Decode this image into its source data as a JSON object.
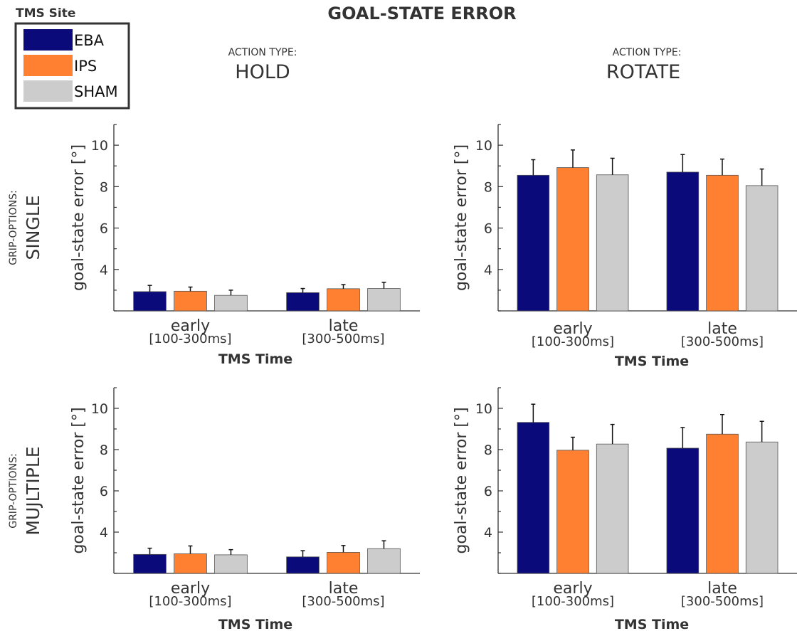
{
  "title": "GOAL-STATE ERROR",
  "legend": {
    "title": "TMS Site",
    "placement": "top-left",
    "entries": [
      {
        "label": "EBA",
        "color": "#0a0a7a"
      },
      {
        "label": "IPS",
        "color": "#ff8030"
      },
      {
        "label": "SHAM",
        "color": "#cccccc"
      }
    ]
  },
  "columns": [
    {
      "caption": "ACTION TYPE:",
      "label": "HOLD"
    },
    {
      "caption": "ACTION TYPE:",
      "label": "ROTATE"
    }
  ],
  "rows": [
    {
      "caption": "GRIP-OPTIONS:",
      "label": "SINGLE"
    },
    {
      "caption": "GRIP-OPTIONS:",
      "label": "MUJLTIPLE"
    }
  ],
  "chart_data": [
    {
      "type": "bar",
      "panel": "SINGLE / HOLD",
      "categories": [
        "early",
        "late"
      ],
      "category_sublabels": [
        "[100-300ms]",
        "[300-500ms]"
      ],
      "xlabel": "TMS Time",
      "ylabel": "goal-state error [°]",
      "ylim": [
        2,
        11
      ],
      "yticks": [
        4,
        6,
        8,
        10
      ],
      "series": [
        {
          "name": "EBA",
          "values": [
            2.93,
            2.88
          ],
          "errors": [
            0.3,
            0.2
          ]
        },
        {
          "name": "IPS",
          "values": [
            2.95,
            3.07
          ],
          "errors": [
            0.2,
            0.2
          ]
        },
        {
          "name": "SHAM",
          "values": [
            2.75,
            3.08
          ],
          "errors": [
            0.25,
            0.3
          ]
        }
      ]
    },
    {
      "type": "bar",
      "panel": "SINGLE / ROTATE",
      "categories": [
        "early",
        "late"
      ],
      "category_sublabels": [
        "[100-300ms]",
        "[300-500ms]"
      ],
      "xlabel": "TMS Time",
      "ylabel": "goal-state error [°]",
      "ylim": [
        2,
        11
      ],
      "yticks": [
        4,
        6,
        8,
        10
      ],
      "series": [
        {
          "name": "EBA",
          "values": [
            8.55,
            8.7
          ],
          "errors": [
            0.75,
            0.85
          ]
        },
        {
          "name": "IPS",
          "values": [
            8.92,
            8.55
          ],
          "errors": [
            0.85,
            0.78
          ]
        },
        {
          "name": "SHAM",
          "values": [
            8.57,
            8.05
          ],
          "errors": [
            0.8,
            0.8
          ]
        }
      ]
    },
    {
      "type": "bar",
      "panel": "MUJLTIPLE / HOLD",
      "categories": [
        "early",
        "late"
      ],
      "category_sublabels": [
        "[100-300ms]",
        "[300-500ms]"
      ],
      "xlabel": "TMS Time",
      "ylabel": "goal-state error [°]",
      "ylim": [
        2,
        11
      ],
      "yticks": [
        4,
        6,
        8,
        10
      ],
      "series": [
        {
          "name": "EBA",
          "values": [
            2.92,
            2.8
          ],
          "errors": [
            0.3,
            0.3
          ]
        },
        {
          "name": "IPS",
          "values": [
            2.95,
            3.02
          ],
          "errors": [
            0.38,
            0.33
          ]
        },
        {
          "name": "SHAM",
          "values": [
            2.9,
            3.2
          ],
          "errors": [
            0.25,
            0.38
          ]
        }
      ]
    },
    {
      "type": "bar",
      "panel": "MUJLTIPLE / ROTATE",
      "categories": [
        "early",
        "late"
      ],
      "category_sublabels": [
        "[100-300ms]",
        "[300-500ms]"
      ],
      "xlabel": "TMS Time",
      "ylabel": "goal-state error [°]",
      "ylim": [
        2,
        11
      ],
      "yticks": [
        4,
        6,
        8,
        10
      ],
      "series": [
        {
          "name": "EBA",
          "values": [
            9.32,
            8.07
          ],
          "errors": [
            0.88,
            1.0
          ]
        },
        {
          "name": "IPS",
          "values": [
            7.97,
            8.75
          ],
          "errors": [
            0.63,
            0.95
          ]
        },
        {
          "name": "SHAM",
          "values": [
            8.27,
            8.37
          ],
          "errors": [
            0.95,
            1.0
          ]
        }
      ]
    }
  ]
}
